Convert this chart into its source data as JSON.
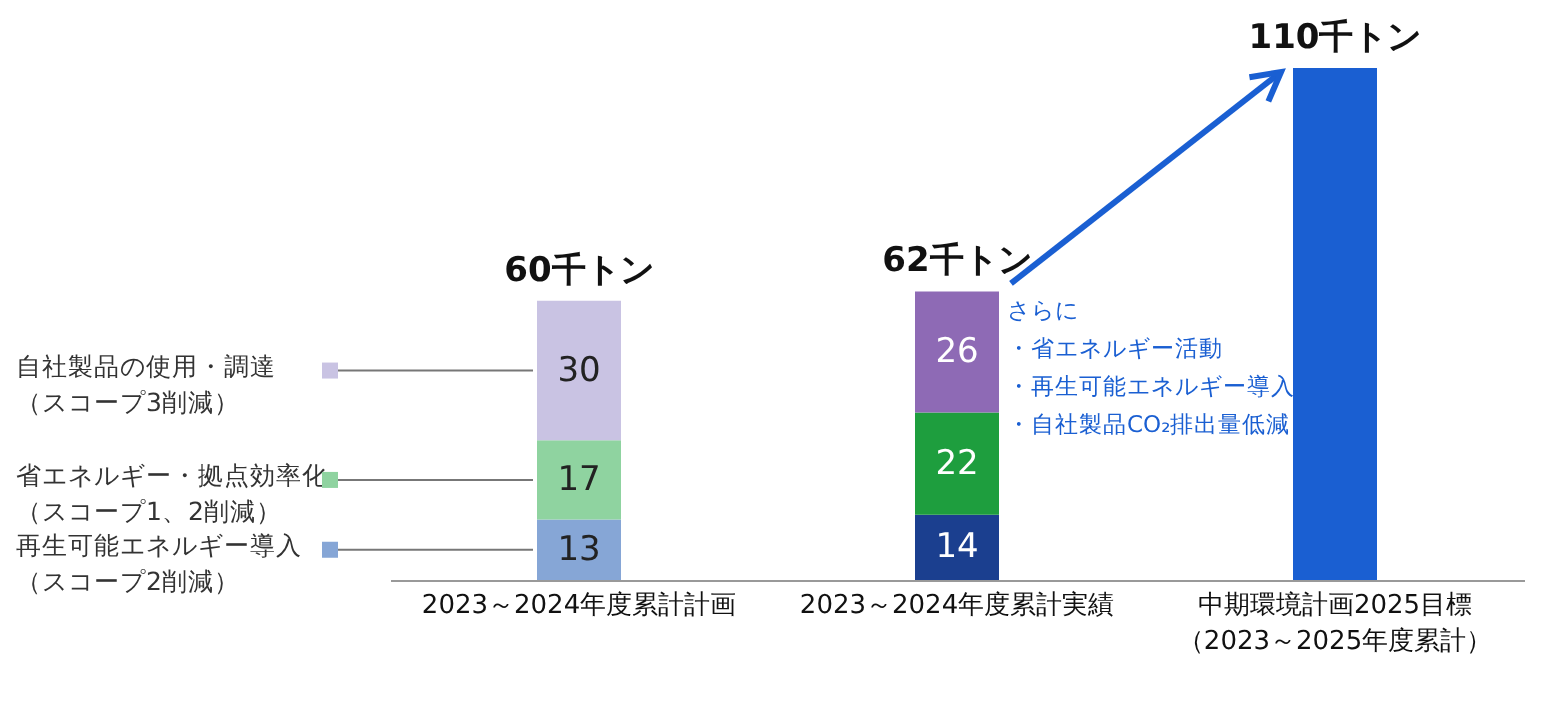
{
  "chart_data": {
    "type": "bar",
    "stacked": true,
    "legend": "left",
    "categories": [
      "2023～2024年度累計計画",
      "2023～2024年度累計実績",
      "中期環境計画2025目標（2023～2025年度累計）"
    ],
    "series": [
      {
        "name": "再生可能エネルギー導入（スコープ2削減）",
        "values": [
          13,
          14,
          null
        ],
        "colors": [
          "#86a6d6",
          "#1b3f8f",
          null
        ],
        "value_labels": [
          "13",
          "14",
          null
        ]
      },
      {
        "name": "省エネルギー・拠点効率化（スコープ1、2削減）",
        "values": [
          17,
          22,
          null
        ],
        "colors": [
          "#8fd3a0",
          "#1e9e3e",
          null
        ],
        "value_labels": [
          "17",
          "22",
          null
        ]
      },
      {
        "name": "自社製品の使用・調達（スコープ3削減）",
        "values": [
          30,
          26,
          null
        ],
        "colors": [
          "#c9c3e3",
          "#8e6ab5",
          null
        ],
        "value_labels": [
          "30",
          "26",
          null
        ]
      },
      {
        "values": [
          null,
          null,
          110
        ],
        "color": "#1a5fd2"
      }
    ],
    "totals": [
      "60千トン",
      "62千トン",
      "110千トン"
    ],
    "annotations": [
      "さらに・省エネルギー活動・再生可能エネルギー導入・自社製品CO₂排出量低減"
    ]
  }
}
